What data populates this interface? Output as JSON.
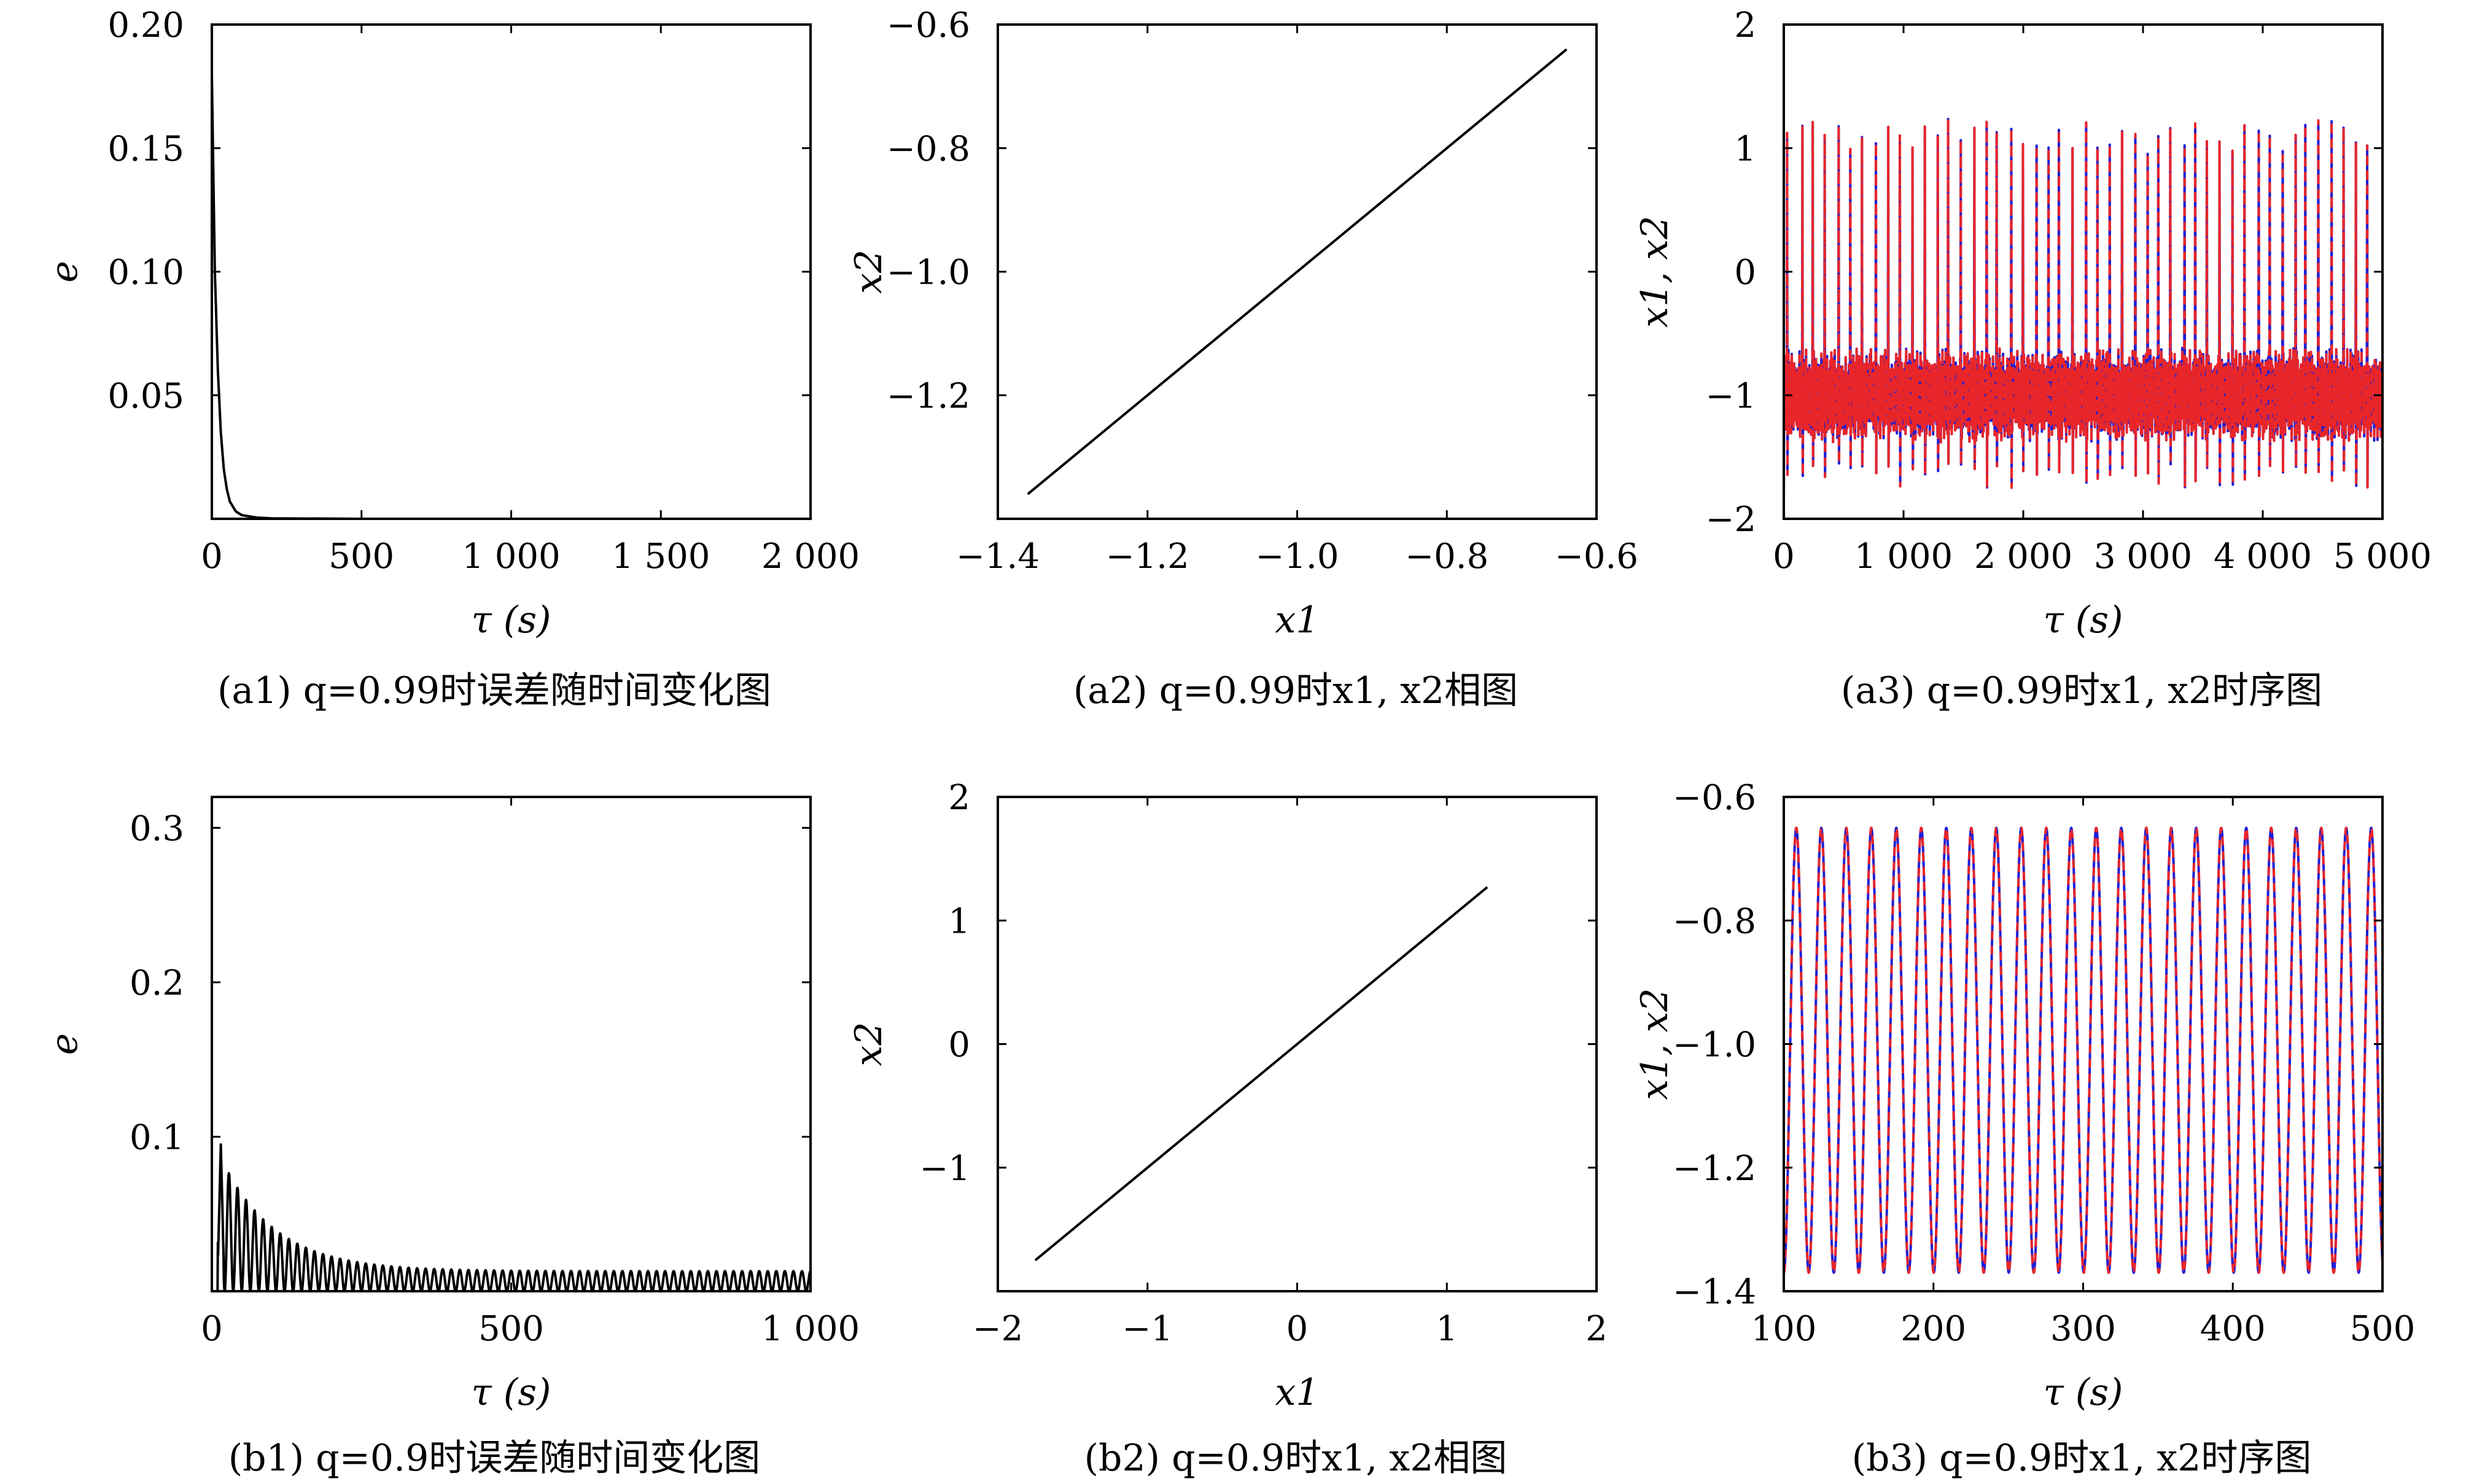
{
  "chart_data": [
    {
      "id": "a1",
      "type": "line",
      "caption": "(a1) q=0.99时误差随时间变化图",
      "xlabel": "τ (s)",
      "ylabel": "e",
      "xlim": [
        0,
        2000
      ],
      "ylim": [
        0,
        0.2
      ],
      "xticks": [
        0,
        500,
        1000,
        1500,
        2000
      ],
      "xtick_labels": [
        "0",
        "500",
        "1 000",
        "1 500",
        "2 000"
      ],
      "yticks": [
        0.05,
        0.1,
        0.15,
        0.2
      ],
      "ytick_labels": [
        "0.05",
        "0.10",
        "0.15",
        "0.20"
      ],
      "series": [
        {
          "color": "#000000",
          "x": [
            0,
            5,
            10,
            20,
            30,
            40,
            50,
            60,
            80,
            100,
            150,
            200,
            500,
            1000,
            1500,
            2000
          ],
          "values": [
            0.18,
            0.14,
            0.1,
            0.06,
            0.035,
            0.02,
            0.012,
            0.007,
            0.003,
            0.0015,
            0.0005,
            0.0002,
            0.0,
            0.0,
            0.0,
            0.0
          ]
        }
      ]
    },
    {
      "id": "a2",
      "type": "line",
      "caption": "(a2) q=0.99时x1, x2相图",
      "xlabel": "x1",
      "ylabel": "x2",
      "xlim": [
        -1.4,
        -0.6
      ],
      "ylim": [
        -1.4,
        -0.6
      ],
      "xticks": [
        -1.4,
        -1.2,
        -1.0,
        -0.8,
        -0.6
      ],
      "xtick_labels": [
        "−1.4",
        "−1.2",
        "−1.0",
        "−0.8",
        "−0.6"
      ],
      "yticks": [
        -1.2,
        -1.0,
        -0.8,
        -0.6
      ],
      "ytick_labels": [
        "−1.2",
        "−1.0",
        "−0.8",
        "−0.6"
      ],
      "series": [
        {
          "color": "#000000",
          "x": [
            -1.36,
            -0.64
          ],
          "values": [
            -1.36,
            -0.64
          ]
        }
      ]
    },
    {
      "id": "a3",
      "type": "line",
      "caption": "(a3) q=0.99时x1, x2时序图",
      "xlabel": "τ (s)",
      "ylabel": "x1, x2",
      "xlim": [
        0,
        5000
      ],
      "ylim": [
        -2,
        2
      ],
      "xticks": [
        0,
        1000,
        2000,
        3000,
        4000,
        5000
      ],
      "xtick_labels": [
        "0",
        "1 000",
        "2 000",
        "3 000",
        "4 000",
        "5 000"
      ],
      "yticks": [
        -2,
        -1,
        0,
        1,
        2
      ],
      "ytick_labels": [
        "−2",
        "−1",
        "0",
        "1",
        "2"
      ],
      "series": [
        {
          "color": "#1f1fd6",
          "style": "solid",
          "baseline": -1.0,
          "amplitude": 0.35,
          "spike_max": 1.25,
          "spike_min": -1.75,
          "spike_count": 48
        },
        {
          "color": "#e8262a",
          "style": "dashed",
          "baseline": -1.0,
          "amplitude": 0.35,
          "spike_max": 1.25,
          "spike_min": -1.75,
          "spike_count": 48
        }
      ]
    },
    {
      "id": "b1",
      "type": "line",
      "caption": "(b1) q=0.9时误差随时间变化图",
      "xlabel": "τ (s)",
      "ylabel": "e",
      "xlim": [
        0,
        1000
      ],
      "ylim": [
        0,
        0.32
      ],
      "xticks": [
        0,
        500,
        1000
      ],
      "xtick_labels": [
        "0",
        "500",
        "1 000"
      ],
      "yticks": [
        0.1,
        0.2,
        0.3
      ],
      "ytick_labels": [
        "0.1",
        "0.2",
        "0.3"
      ],
      "series": [
        {
          "color": "#000000",
          "envelope_start": 0.1,
          "envelope_end": 0.013,
          "oscillations": 70
        }
      ]
    },
    {
      "id": "b2",
      "type": "line",
      "caption": "(b2) q=0.9时x1, x2相图",
      "xlabel": "x1",
      "ylabel": "x2",
      "xlim": [
        -2,
        2
      ],
      "ylim": [
        -2,
        2
      ],
      "xticks": [
        -2,
        -1,
        0,
        1,
        2
      ],
      "xtick_labels": [
        "−2",
        "−1",
        "0",
        "1",
        "2"
      ],
      "yticks": [
        -1,
        0,
        1,
        2
      ],
      "ytick_labels": [
        "−1",
        "0",
        "1",
        "2"
      ],
      "series": [
        {
          "color": "#000000",
          "x": [
            -1.75,
            1.27
          ],
          "values": [
            -1.75,
            1.27
          ]
        }
      ]
    },
    {
      "id": "b3",
      "type": "line",
      "caption": "(b3) q=0.9时x1, x2时序图",
      "xlabel": "τ (s)",
      "ylabel": "x1, x2",
      "xlim": [
        100,
        500
      ],
      "ylim": [
        -1.4,
        -0.6
      ],
      "xticks": [
        100,
        200,
        300,
        400,
        500
      ],
      "xtick_labels": [
        "100",
        "200",
        "300",
        "400",
        "500"
      ],
      "yticks": [
        -1.4,
        -1.2,
        -1.0,
        -0.8,
        -0.6
      ],
      "ytick_labels": [
        "−1.4",
        "−1.2",
        "−1.0",
        "−0.8",
        "−0.6"
      ],
      "series": [
        {
          "color": "#1f1fd6",
          "style": "solid",
          "min": -1.37,
          "max": -0.65,
          "period": 16.7
        },
        {
          "color": "#e8262a",
          "style": "dashed",
          "min": -1.37,
          "max": -0.65,
          "period": 16.7
        }
      ]
    }
  ]
}
